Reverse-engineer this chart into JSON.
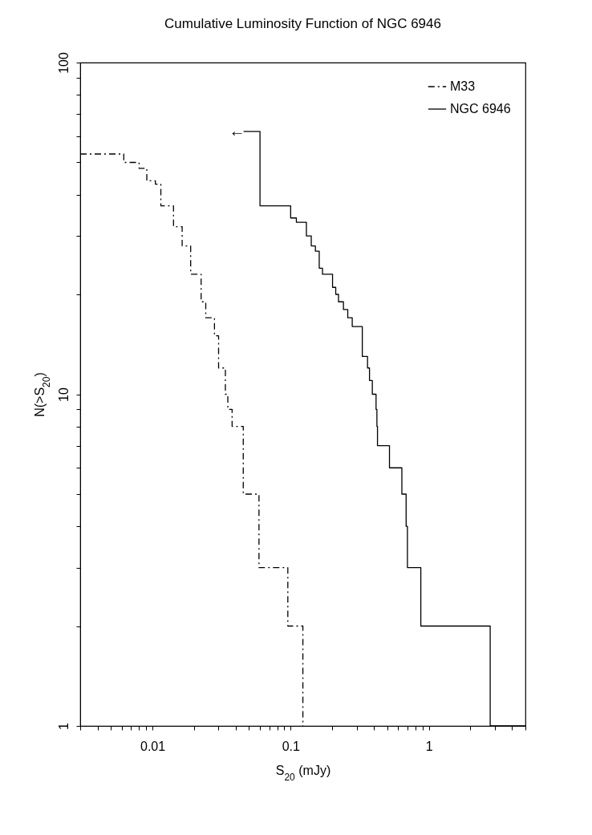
{
  "chart_data": {
    "type": "step",
    "title": "Cumulative Luminosity Function of NGC 6946",
    "xlabel": "S$_{20}$ (mJy)",
    "ylabel": "N(>S$_{20}$)",
    "log": "xy",
    "grid": false,
    "legend": "top right",
    "xlim": [
      0.003,
      5
    ],
    "ylim": [
      1,
      100
    ],
    "xticks": [
      {
        "value": 0.003,
        "label": null
      },
      {
        "value": 0.004,
        "label": null
      },
      {
        "value": 0.005,
        "label": null
      },
      {
        "value": 0.006,
        "label": null
      },
      {
        "value": 0.007,
        "label": null
      },
      {
        "value": 0.008,
        "label": null
      },
      {
        "value": 0.009,
        "label": null
      },
      0.01,
      {
        "value": 0.02,
        "label": null
      },
      {
        "value": 0.03,
        "label": null
      },
      {
        "value": 0.04,
        "label": null
      },
      {
        "value": 0.05,
        "label": null
      },
      {
        "value": 0.06,
        "label": null
      },
      {
        "value": 0.07,
        "label": null
      },
      {
        "value": 0.08,
        "label": null
      },
      {
        "value": 0.09,
        "label": null
      },
      0.1,
      {
        "value": 0.2,
        "label": null
      },
      {
        "value": 0.3,
        "label": null
      },
      {
        "value": 0.4,
        "label": null
      },
      {
        "value": 0.5,
        "label": null
      },
      {
        "value": 0.6,
        "label": null
      },
      {
        "value": 0.7,
        "label": null
      },
      {
        "value": 0.8,
        "label": null
      },
      {
        "value": 0.9,
        "label": null
      },
      1,
      {
        "value": 2,
        "label": null
      },
      {
        "value": 3,
        "label": null
      },
      {
        "value": 4,
        "label": null
      },
      {
        "value": 5,
        "label": null
      }
    ],
    "yticks": [
      1,
      {
        "value": 2,
        "label": null
      },
      {
        "value": 3,
        "label": null
      },
      {
        "value": 4,
        "label": null
      },
      {
        "value": 5,
        "label": null
      },
      {
        "value": 6,
        "label": null
      },
      {
        "value": 7,
        "label": null
      },
      {
        "value": 8,
        "label": null
      },
      {
        "value": 9,
        "label": null
      },
      10,
      {
        "value": 20,
        "label": null
      },
      {
        "value": 30,
        "label": null
      },
      {
        "value": 40,
        "label": null
      },
      {
        "value": 50,
        "label": null
      },
      {
        "value": 60,
        "label": null
      },
      {
        "value": 70,
        "label": null
      },
      {
        "value": 80,
        "label": null
      },
      {
        "value": 90,
        "label": null
      },
      100
    ],
    "series": [
      {
        "name": "M33",
        "color": "#000000",
        "line_style": "dashdot",
        "x": [
          0.003,
          0.0062,
          0.008,
          0.0091,
          0.0105,
          0.0115,
          0.0142,
          0.0164,
          0.0189,
          0.0225,
          0.0243,
          0.0281,
          0.0301,
          0.0337,
          0.0351,
          0.0377,
          0.0454,
          0.059,
          0.0954,
          0.1226
        ],
        "values": [
          53,
          50,
          48,
          44,
          43,
          37,
          32,
          28,
          23,
          19,
          17,
          15,
          12,
          10,
          9,
          8,
          5,
          3,
          2,
          1
        ]
      },
      {
        "name": "NGC 6946",
        "color": "#000000",
        "line_style": "solid",
        "x": [
          0.0456,
          0.06,
          0.1,
          0.11,
          0.13,
          0.141,
          0.151,
          0.161,
          0.17,
          0.201,
          0.212,
          0.222,
          0.241,
          0.259,
          0.279,
          0.33,
          0.36,
          0.372,
          0.39,
          0.415,
          0.421,
          0.425,
          0.519,
          0.638,
          0.685,
          0.7,
          0.875,
          2.78,
          5
        ],
        "values": [
          62,
          37,
          34,
          33,
          30,
          28,
          27,
          24,
          23,
          21,
          20,
          19,
          18,
          17,
          16,
          13,
          12,
          11,
          10,
          9,
          8,
          7,
          6,
          5,
          4,
          3,
          2,
          1,
          1
        ]
      }
    ],
    "annotations": [
      {
        "text": "←",
        "x": 0.0456,
        "y": 62
      }
    ]
  }
}
